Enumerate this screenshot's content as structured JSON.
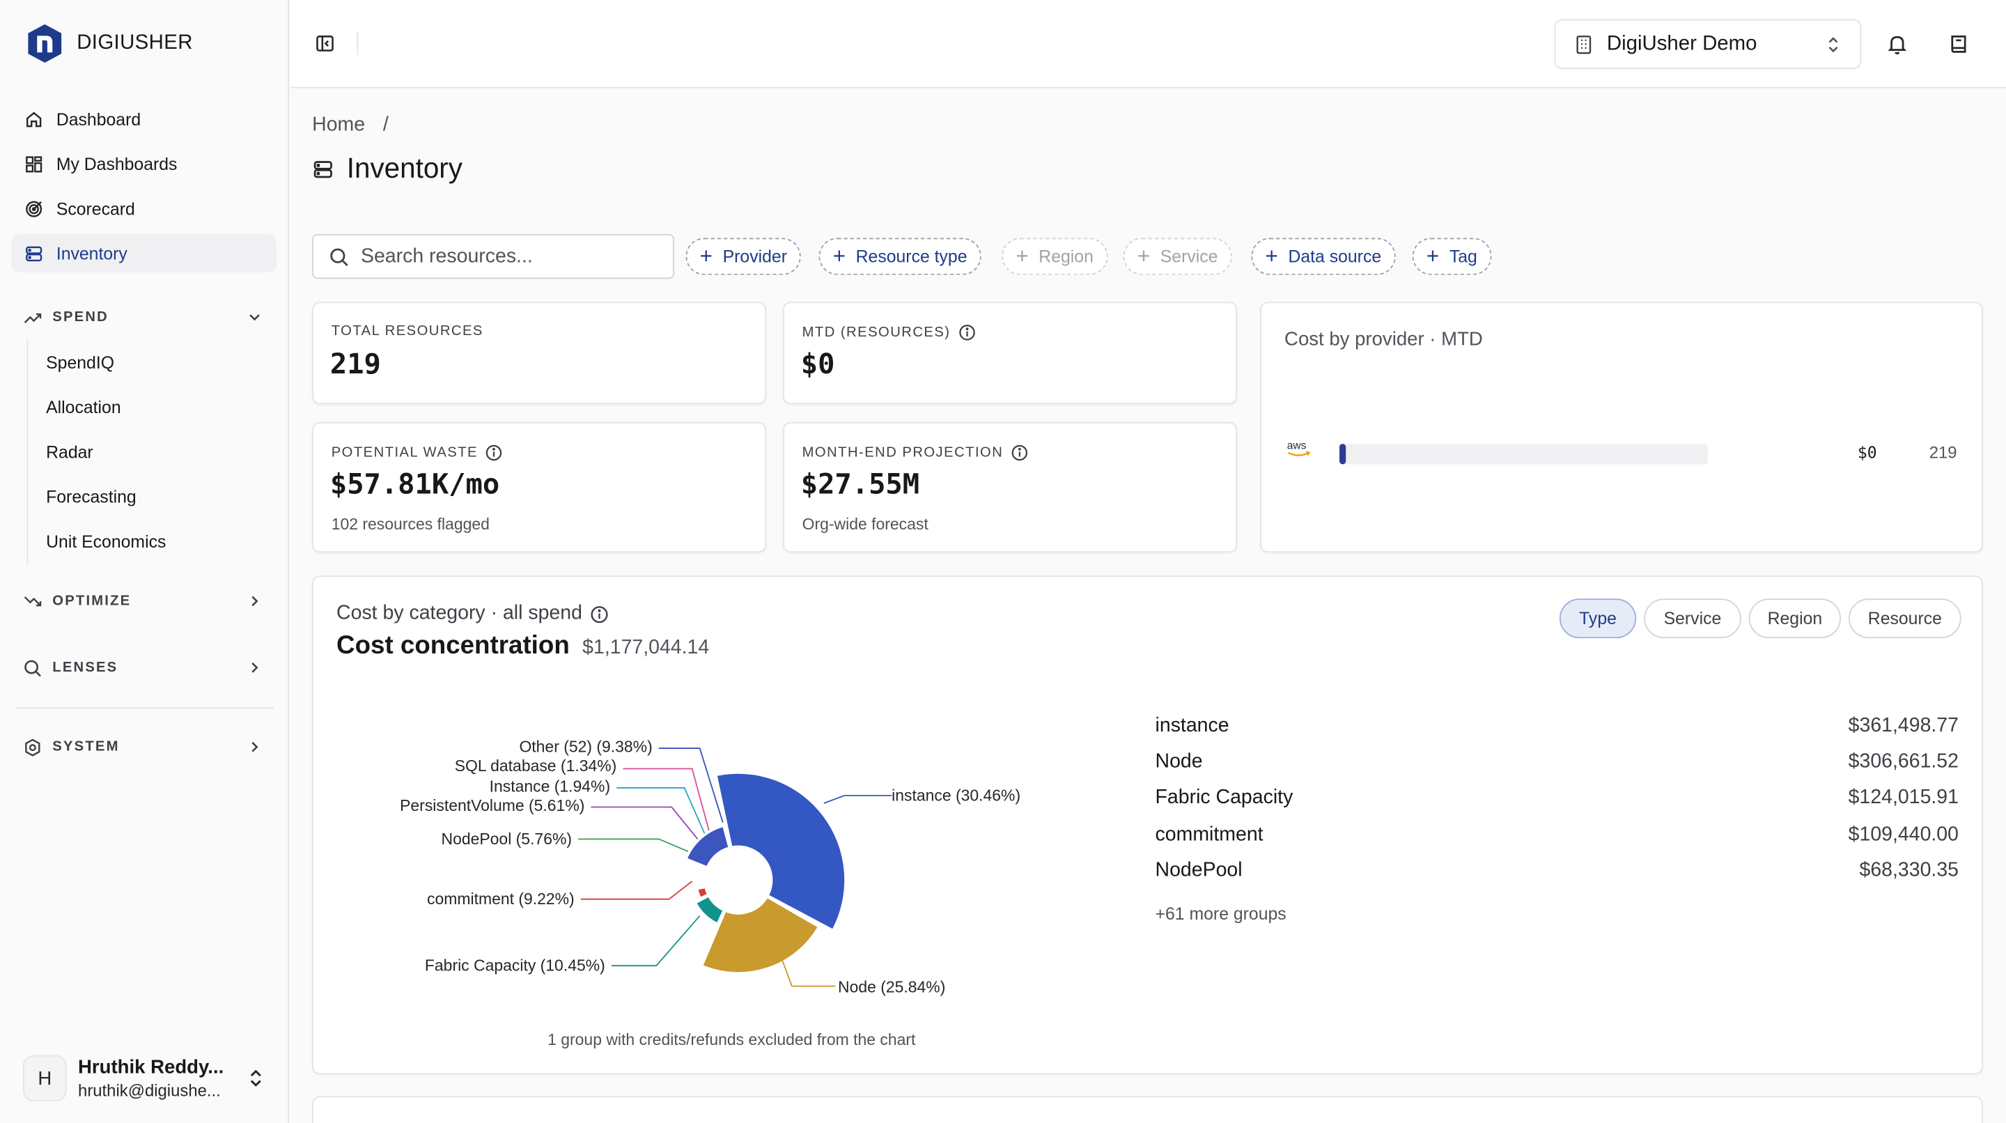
{
  "app": {
    "brand": "DIGIUSHER"
  },
  "sidebar": {
    "items": [
      {
        "label": "Dashboard",
        "icon": "home-icon"
      },
      {
        "label": "My Dashboards",
        "icon": "grid-icon"
      },
      {
        "label": "Scorecard",
        "icon": "target-icon"
      },
      {
        "label": "Inventory",
        "icon": "server-icon",
        "active": true
      }
    ],
    "spend": {
      "label": "SPEND",
      "items": [
        "SpendIQ",
        "Allocation",
        "Radar",
        "Forecasting",
        "Unit Economics"
      ]
    },
    "optimize": {
      "label": "OPTIMIZE"
    },
    "lenses": {
      "label": "LENSES"
    },
    "system": {
      "label": "SYSTEM"
    },
    "user": {
      "initial": "H",
      "name": "Hruthik Reddy...",
      "email": "hruthik@digiushe..."
    }
  },
  "topbar": {
    "org": "DigiUsher Demo"
  },
  "breadcrumb": {
    "home": "Home",
    "sep": "/"
  },
  "page": {
    "title": "Inventory"
  },
  "filters": {
    "search_placeholder": "Search resources...",
    "chips": [
      "Provider",
      "Resource type",
      "Region",
      "Service",
      "Data source",
      "Tag"
    ]
  },
  "kpis": {
    "total_resources": {
      "label": "TOTAL RESOURCES",
      "value": "219"
    },
    "mtd": {
      "label": "MTD (RESOURCES)",
      "value": "$0"
    },
    "waste": {
      "label": "POTENTIAL WASTE",
      "value": "$57.81K/mo",
      "sub": "102 resources flagged"
    },
    "projection": {
      "label": "MONTH-END PROJECTION",
      "value": "$27.55M",
      "sub": "Org-wide forecast"
    }
  },
  "provider_card": {
    "title": "Cost by provider · MTD",
    "rows": [
      {
        "provider": "aws",
        "amount": "$0",
        "count": "219",
        "share": 0.0
      }
    ]
  },
  "category_card": {
    "subtitle": "Cost by category · all spend",
    "title": "Cost concentration",
    "total": "$1,177,044.14",
    "tabs": [
      "Type",
      "Service",
      "Region",
      "Resource"
    ],
    "active_tab": "Type",
    "legend": [
      {
        "name": "instance",
        "value": "$361,498.77"
      },
      {
        "name": "Node",
        "value": "$306,661.52"
      },
      {
        "name": "Fabric Capacity",
        "value": "$124,015.91"
      },
      {
        "name": "commitment",
        "value": "$109,440.00"
      },
      {
        "name": "NodePool",
        "value": "$68,330.35"
      }
    ],
    "more": "+61 more groups",
    "footnote": "1 group with credits/refunds excluded from the chart"
  },
  "chart_data": {
    "type": "pie",
    "categories": [
      "instance",
      "Node",
      "Fabric Capacity",
      "commitment",
      "NodePool",
      "PersistentVolume",
      "Instance",
      "SQL database",
      "Other"
    ],
    "values": [
      30.46,
      25.84,
      10.45,
      9.22,
      5.76,
      5.61,
      1.94,
      1.34,
      9.38
    ],
    "labels": [
      "instance (30.46%)",
      "Node (25.84%)",
      "Fabric Capacity (10.45%)",
      "commitment (9.22%)",
      "NodePool (5.76%)",
      "PersistentVolume (5.61%)",
      "Instance (1.94%)",
      "SQL database (1.34%)",
      "Other (52) (9.38%)"
    ],
    "colors": [
      "#3358c4",
      "#c99a2e",
      "#12938e",
      "#d2403f",
      "#3fa35b",
      "#9448b8",
      "#2ea5c6",
      "#d8539a",
      "#3c55bf"
    ]
  }
}
